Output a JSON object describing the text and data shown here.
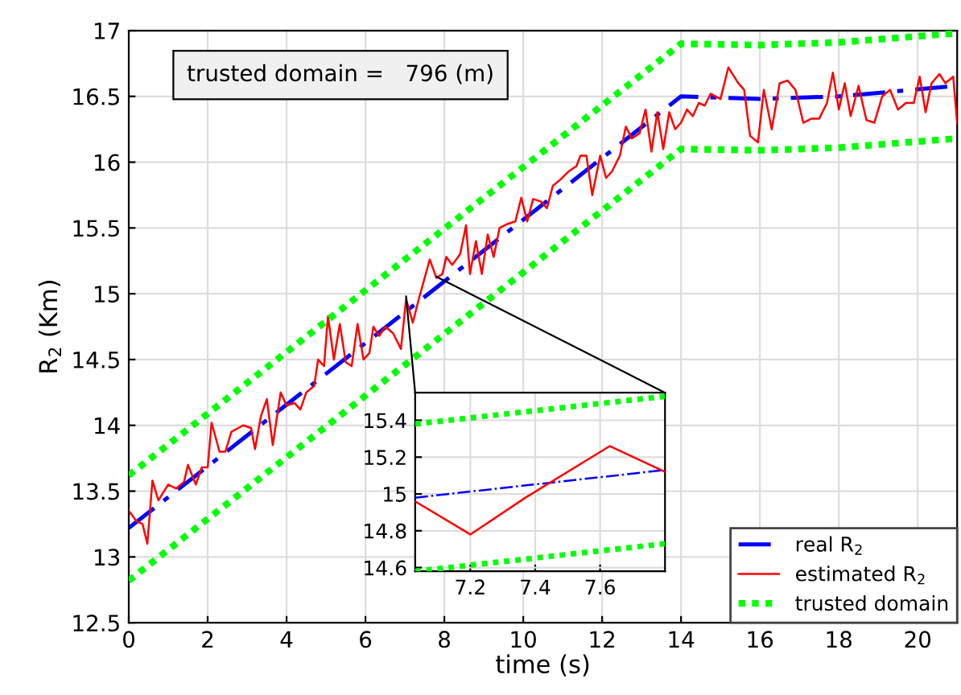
{
  "chart_data": [
    {
      "type": "line",
      "xlabel": "time (s)",
      "ylabel": "R$_{2}$ (Km)",
      "xlim": [
        0,
        21
      ],
      "ylim": [
        12.5,
        17
      ],
      "xticks": [
        0,
        2,
        4,
        6,
        8,
        10,
        12,
        14,
        16,
        18,
        20
      ],
      "yticks": [
        12.5,
        13,
        13.5,
        14,
        14.5,
        15,
        15.5,
        16,
        16.5,
        17
      ],
      "grid": true,
      "legend": "bottom right",
      "annotations": [
        "trusted domain =   796 (m)"
      ],
      "series": [
        {
          "name": "real R$_{2}$",
          "color": "#0000ff",
          "line_style": "dashdot",
          "x": [
            0,
            14,
            16,
            18,
            21
          ],
          "values": [
            13.22,
            16.5,
            16.48,
            16.5,
            16.58
          ]
        },
        {
          "name": "estimated R$_{2}$",
          "color": "#ff0000",
          "line_style": "solid",
          "x": [
            0,
            0.2,
            0.35,
            0.47,
            0.6,
            0.75,
            1.0,
            1.2,
            1.4,
            1.5,
            1.7,
            1.85,
            2.0,
            2.1,
            2.3,
            2.45,
            2.6,
            2.9,
            3.1,
            3.2,
            3.35,
            3.5,
            3.65,
            3.85,
            4.0,
            4.2,
            4.35,
            4.5,
            4.7,
            4.8,
            4.95,
            5.05,
            5.2,
            5.35,
            5.5,
            5.65,
            5.8,
            5.95,
            6.1,
            6.2,
            6.35,
            6.5,
            6.7,
            6.9,
            7.03,
            7.2,
            7.37,
            7.63,
            7.8,
            7.95,
            8.05,
            8.2,
            8.4,
            8.55,
            8.65,
            8.8,
            8.95,
            9.1,
            9.25,
            9.4,
            9.6,
            9.8,
            9.95,
            10.1,
            10.25,
            10.45,
            10.6,
            10.75,
            10.95,
            11.15,
            11.35,
            11.45,
            11.6,
            11.75,
            11.95,
            12.1,
            12.25,
            12.45,
            12.6,
            12.75,
            12.95,
            13.1,
            13.25,
            13.4,
            13.55,
            13.7,
            13.85,
            14.0,
            14.15,
            14.3,
            14.45,
            14.6,
            14.75,
            15.0,
            15.2,
            15.45,
            15.6,
            15.75,
            15.95,
            16.1,
            16.3,
            16.5,
            16.7,
            16.9,
            17.1,
            17.3,
            17.5,
            17.7,
            17.85,
            18.0,
            18.15,
            18.3,
            18.5,
            18.7,
            18.9,
            19.1,
            19.3,
            19.5,
            19.7,
            19.9,
            20.05,
            20.2,
            20.35,
            20.55,
            20.7,
            20.9,
            21.0
          ],
          "values": [
            13.35,
            13.27,
            13.25,
            13.1,
            13.58,
            13.43,
            13.55,
            13.52,
            13.57,
            13.7,
            13.55,
            13.68,
            13.68,
            14.02,
            13.8,
            13.8,
            13.95,
            14.0,
            13.98,
            13.82,
            14.07,
            14.2,
            13.85,
            14.25,
            14.15,
            14.17,
            14.12,
            14.25,
            14.3,
            14.5,
            14.45,
            14.83,
            14.5,
            14.77,
            14.48,
            14.45,
            14.77,
            14.5,
            14.55,
            14.75,
            14.68,
            14.75,
            14.7,
            14.58,
            14.96,
            14.78,
            14.98,
            15.26,
            15.12,
            15.15,
            15.28,
            15.22,
            15.3,
            15.52,
            15.15,
            15.4,
            15.15,
            15.45,
            15.28,
            15.5,
            15.53,
            15.55,
            15.73,
            15.55,
            15.72,
            15.7,
            15.65,
            15.82,
            15.87,
            15.93,
            15.97,
            16.05,
            16.05,
            15.75,
            16.05,
            15.88,
            15.93,
            16.05,
            16.27,
            16.18,
            16.22,
            16.4,
            16.08,
            16.38,
            16.1,
            16.38,
            16.25,
            16.3,
            16.4,
            16.35,
            16.45,
            16.43,
            16.52,
            16.48,
            16.72,
            16.6,
            16.55,
            16.2,
            16.15,
            16.55,
            16.25,
            16.6,
            16.62,
            16.55,
            16.3,
            16.33,
            16.33,
            16.45,
            16.68,
            16.4,
            16.6,
            16.35,
            16.58,
            16.32,
            16.3,
            16.5,
            16.55,
            16.4,
            16.45,
            16.45,
            16.65,
            16.38,
            16.6,
            16.67,
            16.6,
            16.65,
            16.3
          ]
        },
        {
          "name": "trusted domain",
          "color": "#00ff00",
          "line_style": "dotted",
          "x": [
            0,
            14,
            16,
            18,
            21
          ],
          "values": [
            13.62,
            16.9,
            16.89,
            16.91,
            16.98
          ]
        },
        {
          "color": "#00ff00",
          "line_style": "dotted",
          "x": [
            0,
            14,
            16,
            18,
            21
          ],
          "values": [
            12.82,
            16.1,
            16.09,
            16.11,
            16.18
          ]
        }
      ]
    },
    {
      "type": "line",
      "xlim": [
        7.03,
        7.8
      ],
      "ylim": [
        14.58,
        15.55
      ],
      "xticks": [
        7.2,
        7.4,
        7.6
      ],
      "yticks": [
        14.6,
        14.8,
        15,
        15.2,
        15.4
      ],
      "grid": true,
      "series": [
        {
          "color": "#0000ff",
          "line_style": "dashdot",
          "x": [
            7.03,
            7.8
          ],
          "values": [
            14.98,
            15.13
          ]
        },
        {
          "color": "#ff0000",
          "line_style": "solid",
          "x": [
            7.03,
            7.2,
            7.37,
            7.63,
            7.8
          ],
          "values": [
            14.96,
            14.78,
            14.98,
            15.26,
            15.12
          ]
        },
        {
          "color": "#00ff00",
          "line_style": "dotted",
          "x": [
            7.03,
            7.8
          ],
          "values": [
            15.38,
            15.53
          ]
        },
        {
          "color": "#00ff00",
          "line_style": "dotted",
          "x": [
            7.03,
            7.8
          ],
          "values": [
            14.58,
            14.73
          ]
        }
      ]
    }
  ]
}
